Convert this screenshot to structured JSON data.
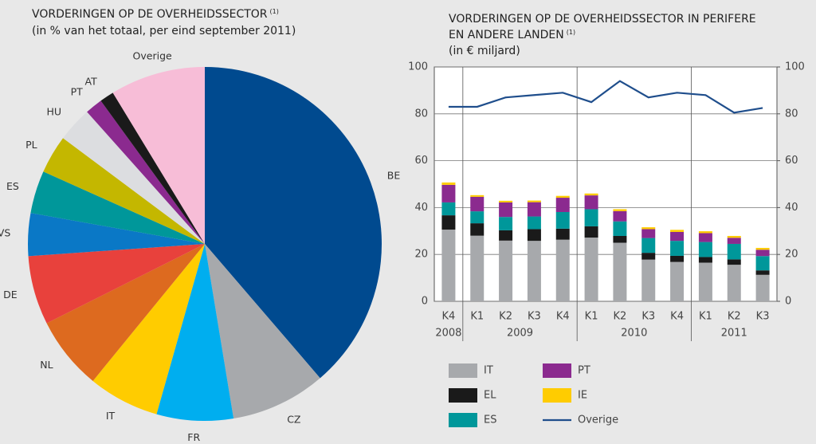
{
  "chart_data": [
    {
      "type": "pie",
      "title": "VORDERINGEN OP DE OVERHEIDSSECTOR",
      "title_note": "(1)",
      "subtitle": "(in % van het totaal, per eind september 2011)",
      "categories": [
        "BE",
        "CZ",
        "FR",
        "IT",
        "NL",
        "DE",
        "VS",
        "ES",
        "PL",
        "HU",
        "PT",
        "AT",
        "Overige"
      ],
      "values": [
        38.7,
        8.7,
        7.0,
        6.5,
        6.7,
        6.3,
        3.9,
        3.9,
        3.5,
        3.2,
        1.6,
        1.3,
        8.7
      ],
      "colors": [
        "#004a8f",
        "#a7a9ac",
        "#00aeef",
        "#ffcc00",
        "#dd6a1f",
        "#e8413c",
        "#0a78c6",
        "#00979a",
        "#c4b700",
        "#dcdde0",
        "#8b2a8f",
        "#1a1a1a",
        "#f7bdd7"
      ]
    },
    {
      "type": "bar",
      "stacked": true,
      "title": [
        "VORDERINGEN OP DE OVERHEIDSSECTOR IN PERIFERE",
        "EN ANDERE LANDEN"
      ],
      "title_note": "(1)",
      "subtitle": "(in € miljard)",
      "categories": [
        "K4",
        "K1",
        "K2",
        "K3",
        "K4",
        "K1",
        "K2",
        "K3",
        "K4",
        "K1",
        "K2",
        "K3"
      ],
      "category_groups": [
        "2008",
        "2009",
        "2010",
        "2011"
      ],
      "ylim": [
        0,
        100
      ],
      "yticks": [
        0,
        20,
        40,
        60,
        80,
        100
      ],
      "y2lim": [
        0,
        100
      ],
      "y2ticks": [
        0,
        20,
        40,
        60,
        80,
        100
      ],
      "grid": true,
      "series": [
        {
          "name": "IT",
          "color": "#a7a9ac",
          "values": [
            30.6,
            28.0,
            25.9,
            25.8,
            26.3,
            27.2,
            25.0,
            17.8,
            16.8,
            16.5,
            15.6,
            11.3
          ]
        },
        {
          "name": "EL",
          "color": "#1a1a1a",
          "values": [
            6.1,
            5.3,
            4.4,
            5.0,
            4.7,
            4.8,
            2.9,
            2.9,
            2.6,
            2.4,
            2.3,
            1.9
          ]
        },
        {
          "name": "ES",
          "color": "#00979a",
          "values": [
            5.5,
            5.1,
            5.7,
            5.4,
            7.1,
            7.3,
            6.2,
            6.3,
            6.4,
            6.4,
            6.6,
            6.1
          ]
        },
        {
          "name": "PT",
          "color": "#8b2a8f",
          "values": [
            7.5,
            6.2,
            6.2,
            6.1,
            6.1,
            5.9,
            4.4,
            3.8,
            3.8,
            3.8,
            2.6,
            2.7
          ]
        },
        {
          "name": "IE",
          "color": "#ffcc00",
          "values": [
            1.0,
            0.7,
            0.7,
            0.7,
            0.8,
            0.8,
            0.8,
            0.8,
            0.9,
            0.8,
            0.8,
            0.8
          ]
        },
        {
          "name": "Overige",
          "type": "line",
          "color": "#1f4e8c",
          "values": [
            83,
            83,
            87,
            88,
            89,
            85,
            94,
            87,
            89,
            88,
            80.5,
            82.5
          ]
        }
      ]
    }
  ]
}
